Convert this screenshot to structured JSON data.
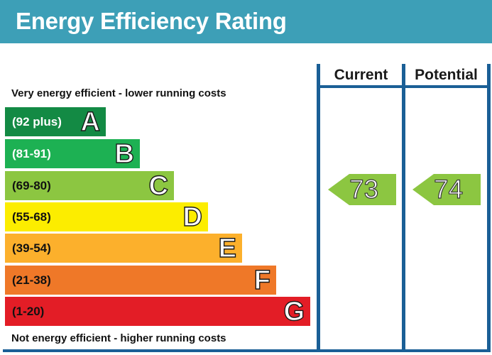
{
  "header": {
    "title": "Energy Efficiency Rating"
  },
  "notes": {
    "top": "Very energy efficient - lower running costs",
    "bottom": "Not energy efficient - higher running costs"
  },
  "columns": {
    "current": "Current",
    "potential": "Potential"
  },
  "bands": [
    {
      "range": "(92 plus)",
      "letter": "A",
      "color": "#138a44"
    },
    {
      "range": "(81-91)",
      "letter": "B",
      "color": "#1db153"
    },
    {
      "range": "(69-80)",
      "letter": "C",
      "color": "#8cc641"
    },
    {
      "range": "(55-68)",
      "letter": "D",
      "color": "#fced00"
    },
    {
      "range": "(39-54)",
      "letter": "E",
      "color": "#fcb02c"
    },
    {
      "range": "(21-38)",
      "letter": "F",
      "color": "#ef7828"
    },
    {
      "range": "(1-20)",
      "letter": "G",
      "color": "#e31d26"
    }
  ],
  "ratings": {
    "current": {
      "value": "73",
      "band": "C",
      "color": "#8cc641"
    },
    "potential": {
      "value": "74",
      "band": "C",
      "color": "#8cc641"
    }
  }
}
